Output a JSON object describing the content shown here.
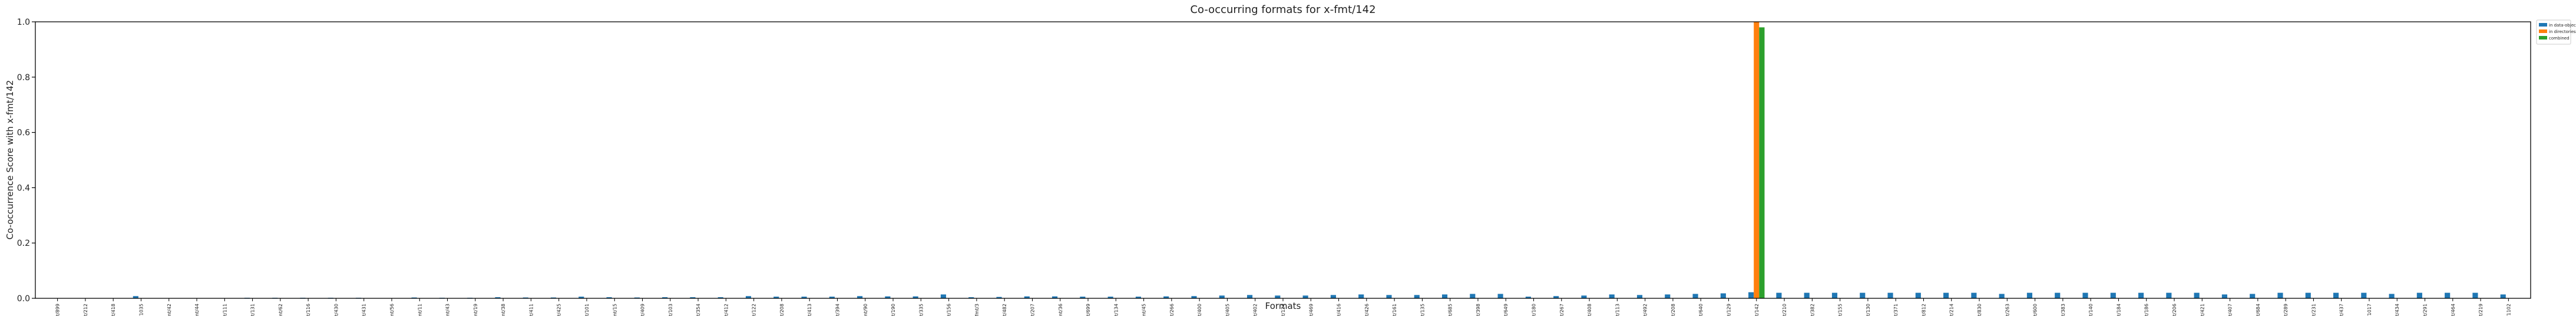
{
  "chart_data": {
    "type": "bar",
    "title": "Co-occurring formats for x-fmt/142",
    "xlabel": "Formats",
    "ylabel": "Co-occurrence Score with x-fmt/142",
    "ylim": [
      0,
      1.0
    ],
    "yticks": [
      "0.0",
      "0.2",
      "0.4",
      "0.6",
      "0.8",
      "1.0"
    ],
    "legend_position": "outside-top-right",
    "grid": false,
    "categories": [
      "fmt/899",
      "fmt/212",
      "x-fmt/418",
      "fmt/1035",
      "fmt/42",
      "fmt/44",
      "x-fmt/111",
      "fmt/131",
      "x-fmt/62",
      "fmt/116",
      "x-fmt/430",
      "x-fmt/431",
      "fmt/56",
      "fmt/11",
      "fmt/43",
      "fmt/19",
      "fmt/38",
      "x-fmt/411",
      "x-fmt/425",
      "x-fmt/101",
      "fmt/15",
      "x-fmt/409",
      "fmt/103",
      "fmt/354",
      "x-fmt/412",
      "fmt/122",
      "fmt/208",
      "x-fmt/413",
      "x-fmt/394",
      "fmt/90",
      "x-fmt/190",
      "x-fmt/335",
      "x-fmt/156",
      "fmt/3",
      "fmt/482",
      "x-fmt/207",
      "fmt/36",
      "fmt/699",
      "fmt/134",
      "fmt/45",
      "x-fmt/266",
      "x-fmt/400",
      "x-fmt/405",
      "x-fmt/402",
      "fmt/124",
      "fmt/469",
      "x-fmt/416",
      "fmt/426",
      "fmt/161",
      "x-fmt/135",
      "fmt/685",
      "fmt/398",
      "fmt/649",
      "x-fmt/180",
      "x-fmt/267",
      "fmt/408",
      "fmt/113",
      "fmt/492",
      "x-fmt/208",
      "fmt/640",
      "x-fmt/129",
      "fmt/142",
      "x-fmt/210",
      "x-fmt/382",
      "x-fmt/155",
      "fmt/130",
      "fmt/371",
      "fmt/812",
      "fmt/214",
      "fmt/830",
      "x-fmt/263",
      "fmt/600",
      "fmt/383",
      "fmt/140",
      "x-fmt/184",
      "x-fmt/186",
      "fmt/206",
      "fmt/421",
      "x-fmt/407",
      "fmt/684",
      "x-fmt/289",
      "fmt/231",
      "fmt/437",
      "fmt/1017",
      "fmt/434",
      "x-fmt/291",
      "fmt/464",
      "x-fmt/219",
      "fmt/1102"
    ],
    "series": [
      {
        "name": "in data-objects",
        "color": "#1f77b4",
        "values": [
          0.001,
          0.001,
          0.001,
          0.008,
          0.001,
          0.001,
          0.001,
          0.002,
          0.002,
          0.002,
          0.002,
          0.002,
          0.001,
          0.003,
          0.002,
          0.002,
          0.004,
          0.003,
          0.003,
          0.006,
          0.004,
          0.003,
          0.004,
          0.004,
          0.004,
          0.008,
          0.006,
          0.006,
          0.006,
          0.008,
          0.007,
          0.007,
          0.014,
          0.004,
          0.005,
          0.007,
          0.007,
          0.006,
          0.006,
          0.006,
          0.007,
          0.008,
          0.01,
          0.012,
          0.01,
          0.01,
          0.012,
          0.014,
          0.012,
          0.012,
          0.014,
          0.016,
          0.016,
          0.006,
          0.008,
          0.01,
          0.014,
          0.012,
          0.014,
          0.016,
          0.018,
          0.022,
          0.02,
          0.02,
          0.02,
          0.02,
          0.02,
          0.02,
          0.02,
          0.02,
          0.016,
          0.02,
          0.02,
          0.02,
          0.02,
          0.02,
          0.02,
          0.02,
          0.014,
          0.016,
          0.02,
          0.02,
          0.02,
          0.02,
          0.016,
          0.02,
          0.02,
          0.02,
          0.014
        ]
      },
      {
        "name": "in directories",
        "color": "#ff7f0e",
        "values": [
          0,
          0,
          0,
          0,
          0,
          0,
          0,
          0,
          0,
          0,
          0,
          0,
          0,
          0,
          0,
          0,
          0,
          0,
          0,
          0,
          0,
          0,
          0,
          0,
          0,
          0,
          0,
          0,
          0,
          0,
          0,
          0,
          0,
          0,
          0,
          0,
          0,
          0,
          0,
          0,
          0,
          0,
          0,
          0,
          0,
          0,
          0,
          0,
          0,
          0,
          0,
          0,
          0,
          0,
          0,
          0,
          0,
          0,
          0,
          0,
          0,
          1.0,
          0,
          0,
          0,
          0,
          0,
          0,
          0,
          0,
          0,
          0,
          0,
          0,
          0,
          0,
          0,
          0,
          0,
          0,
          0,
          0,
          0,
          0,
          0,
          0,
          0,
          0,
          0
        ]
      },
      {
        "name": "combined",
        "color": "#2ca02c",
        "values": [
          0,
          0,
          0,
          0,
          0,
          0,
          0,
          0,
          0,
          0,
          0,
          0,
          0,
          0,
          0,
          0,
          0,
          0,
          0,
          0,
          0,
          0,
          0,
          0,
          0,
          0,
          0,
          0,
          0,
          0,
          0,
          0,
          0,
          0,
          0,
          0,
          0,
          0,
          0,
          0,
          0,
          0,
          0,
          0,
          0,
          0,
          0,
          0,
          0,
          0,
          0,
          0,
          0,
          0,
          0,
          0,
          0,
          0,
          0,
          0,
          0,
          0.98,
          0,
          0,
          0,
          0,
          0,
          0,
          0,
          0,
          0,
          0,
          0,
          0,
          0,
          0,
          0,
          0,
          0,
          0,
          0,
          0,
          0,
          0,
          0,
          0,
          0,
          0,
          0
        ]
      }
    ]
  }
}
